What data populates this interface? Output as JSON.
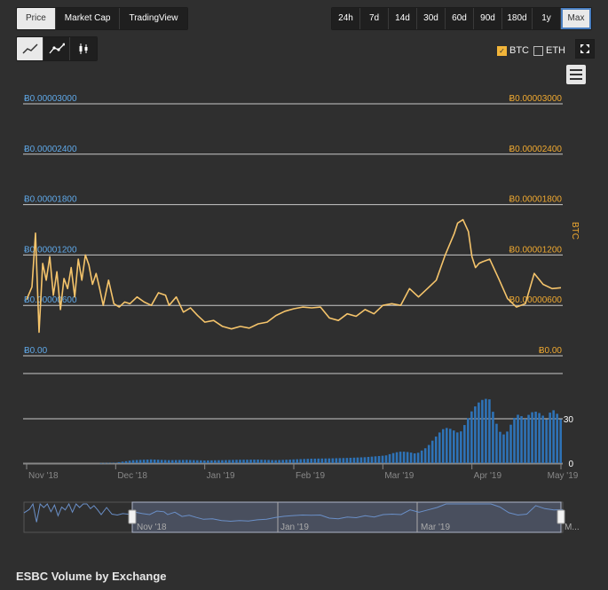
{
  "chart_tabs": {
    "type": [
      "Price",
      "Market Cap",
      "TradingView"
    ],
    "type_active": "Price",
    "ranges": [
      "24h",
      "7d",
      "14d",
      "30d",
      "60d",
      "90d",
      "180d",
      "1y",
      "Max"
    ],
    "range_active": "Max",
    "styles": [
      "line-chart-icon",
      "line-markers-icon",
      "candlestick-icon"
    ],
    "style_active": "line-chart-icon"
  },
  "toggles": {
    "btc_label": "BTC",
    "btc_checked": true,
    "eth_label": "ETH",
    "eth_checked": false
  },
  "icons": {
    "fullscreen": "expand-icon",
    "menu": "hamburger-icon"
  },
  "footer": {
    "title": "ESBC Volume by Exchange"
  },
  "colors": {
    "price": "#f5c46b",
    "price_axis": "#f0a930",
    "left_axis": "#5fa8e8",
    "volume": "#2e73b8",
    "navigator_mask": "#4d5566"
  },
  "chart_data": {
    "type": "line",
    "price_axis": {
      "ticks_left": [
        "Ƀ0.00003000",
        "Ƀ0.00002400",
        "Ƀ0.00001800",
        "Ƀ0.00001200",
        "Ƀ0.00000600",
        "Ƀ0.00"
      ],
      "ticks_right": [
        "Ƀ0.00003000",
        "Ƀ0.00002400",
        "Ƀ0.00001800",
        "Ƀ0.00001200",
        "Ƀ0.00000600",
        "Ƀ0.00"
      ],
      "values": [
        3e-05,
        2.4e-05,
        1.8e-05,
        1.2e-05,
        6e-06,
        0
      ],
      "title": "BTC",
      "ylim": [
        0,
        3e-05
      ]
    },
    "volume_axis": {
      "ticks": [
        "30",
        "0"
      ],
      "values": [
        30,
        0
      ],
      "ylim": [
        0,
        60
      ]
    },
    "x_axis": {
      "ticks": [
        "Nov '18",
        "Dec '18",
        "Jan '19",
        "Feb '19",
        "Mar '19",
        "Apr '19",
        "May '19"
      ]
    },
    "navigator": {
      "ticks": [
        "Nov '18",
        "Jan '19",
        "Mar '19",
        "M..."
      ]
    },
    "series": [
      {
        "name": "BTC",
        "x": [
          0,
          3,
          5,
          7,
          9,
          11,
          13,
          15,
          17,
          19,
          21,
          23,
          25,
          27,
          29,
          31,
          33,
          35,
          37,
          39,
          41,
          43,
          46,
          49,
          52,
          55,
          58,
          62,
          66,
          70,
          74,
          78,
          80,
          84,
          88,
          92,
          96,
          100,
          105,
          110,
          115,
          120,
          125,
          130,
          135,
          140,
          145,
          150,
          155,
          160,
          165,
          170,
          175,
          180,
          185,
          190,
          195,
          200,
          205,
          210,
          215,
          220,
          225,
          230,
          235,
          240,
          242,
          245,
          248,
          250,
          252,
          254,
          256,
          260,
          265,
          270,
          275,
          280,
          285,
          290,
          295,
          300
        ],
        "y": [
          6.7e-06,
          8.2e-06,
          1.46e-05,
          2.8e-06,
          1.1e-05,
          9e-06,
          1.18e-05,
          7.2e-06,
          1e-05,
          5.5e-06,
          9.2e-06,
          8e-06,
          1.05e-05,
          7e-06,
          1.15e-05,
          9e-06,
          1.2e-05,
          1.08e-05,
          8.5e-06,
          9.8e-06,
          8e-06,
          6e-06,
          9e-06,
          6.2e-06,
          5.8e-06,
          6.4e-06,
          6.2e-06,
          7e-06,
          6.4e-06,
          6e-06,
          7.5e-06,
          7.2e-06,
          6e-06,
          7e-06,
          5.2e-06,
          5.7e-06,
          4.8e-06,
          4e-06,
          4.2e-06,
          3.5e-06,
          3.2e-06,
          3.5e-06,
          3.3e-06,
          3.8e-06,
          4e-06,
          4.8e-06,
          5.3e-06,
          5.6e-06,
          5.8e-06,
          5.7e-06,
          5.8e-06,
          4.5e-06,
          4.2e-06,
          5e-06,
          4.7e-06,
          5.5e-06,
          5e-06,
          6e-06,
          6.2e-06,
          6e-06,
          8e-06,
          7e-06,
          8e-06,
          9e-06,
          1.2e-05,
          1.45e-05,
          1.58e-05,
          1.62e-05,
          1.48e-05,
          1.18e-05,
          1.05e-05,
          1.1e-05,
          1.12e-05,
          1.15e-05,
          9.2e-06,
          6.8e-06,
          5.8e-06,
          6.2e-06,
          9.8e-06,
          8.5e-06,
          8e-06,
          8.1e-06
        ]
      },
      {
        "name": "Volume",
        "x": [
          0,
          10,
          20,
          30,
          40,
          50,
          60,
          70,
          80,
          90,
          100,
          110,
          120,
          130,
          140,
          150,
          160,
          170,
          180,
          190,
          200,
          210,
          220,
          225,
          230,
          235,
          240,
          245,
          250,
          255,
          260,
          265,
          270,
          275,
          280,
          285,
          290,
          295,
          300
        ],
        "y": [
          0,
          0,
          0,
          0,
          0,
          0.3,
          2,
          2.5,
          2,
          2.2,
          1.8,
          2,
          2.3,
          2.4,
          2,
          2.5,
          3,
          3.2,
          3.5,
          4,
          5,
          8,
          10,
          12,
          18,
          25,
          28,
          32,
          38,
          42,
          46,
          30,
          28,
          35,
          30,
          38,
          44,
          46,
          31
        ]
      }
    ]
  }
}
